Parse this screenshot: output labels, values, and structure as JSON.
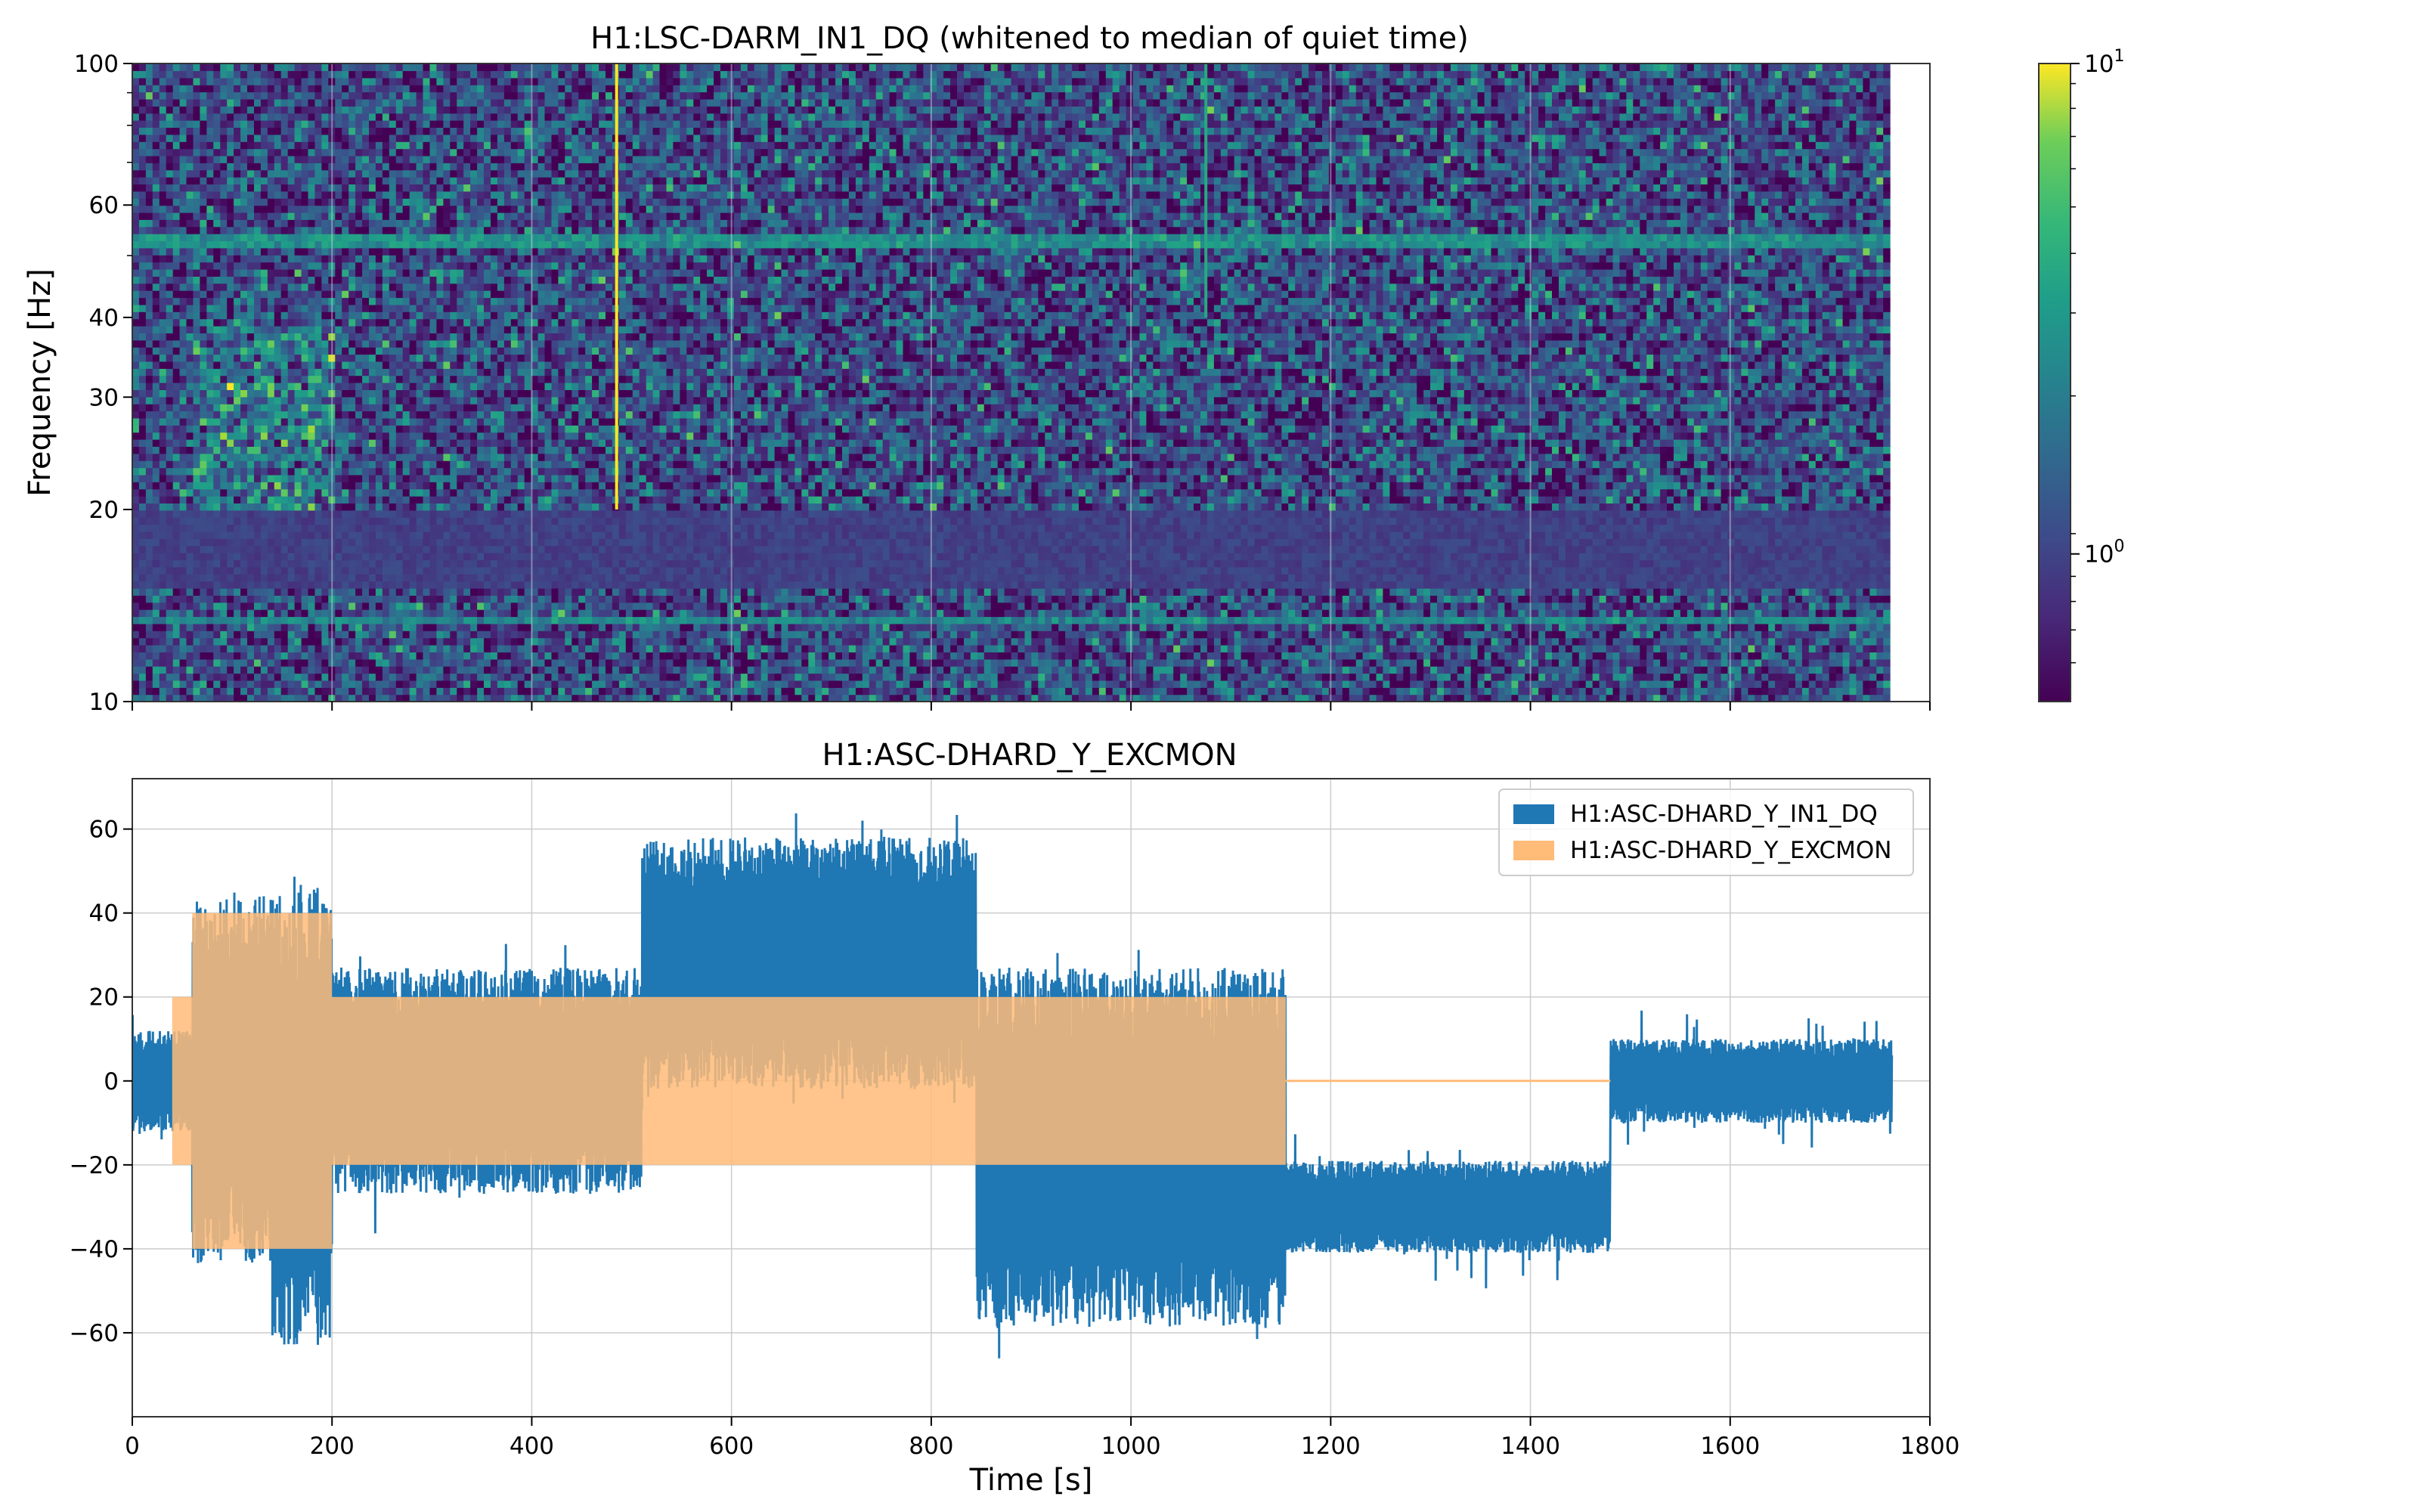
{
  "chart_data": [
    {
      "type": "heatmap",
      "title": "H1:LSC-DARM_IN1_DQ (whitened to median of quiet time)",
      "xlabel": "",
      "ylabel": "Frequency [Hz]",
      "xlim": [
        0,
        1800
      ],
      "ylim": [
        10,
        100
      ],
      "y_scale": "log",
      "data_extent_x": [
        0,
        1760
      ],
      "y_ticks": [
        10,
        20,
        30,
        40,
        60,
        100
      ],
      "y_tick_labels": [
        "10",
        "20",
        "30",
        "40",
        "60",
        "100"
      ],
      "x_ticks": [
        0,
        200,
        400,
        600,
        800,
        1000,
        1200,
        1400,
        1600,
        1800
      ],
      "grid": true,
      "colormap": "viridis",
      "colorbar": {
        "scale": "log",
        "range": [
          0.5,
          10
        ],
        "tick_labels": [
          {
            "base": "10",
            "exp": "1",
            "value": 10
          },
          {
            "base": "10",
            "exp": "0",
            "value": 1
          }
        ]
      },
      "features": [
        {
          "kind": "broadband_transient",
          "t": 485,
          "f_range": [
            20,
            100
          ],
          "intensity": 10
        },
        {
          "kind": "broadband_transient",
          "t": 1075,
          "f_range": [
            40,
            100
          ],
          "intensity": 3
        },
        {
          "kind": "persistent_line",
          "f": 53,
          "intensity": 2.5
        },
        {
          "kind": "persistent_line",
          "f": 13.5,
          "intensity": 2.2
        },
        {
          "kind": "excess_region",
          "t_range": [
            60,
            200
          ],
          "f_range": [
            20,
            40
          ],
          "intensity": 2.5
        },
        {
          "kind": "quiet_band",
          "f_range": [
            15,
            20
          ],
          "intensity": 0.9
        }
      ]
    },
    {
      "type": "line",
      "title": "H1:ASC-DHARD_Y_EXCMON",
      "xlabel": "Time [s]",
      "ylabel": "",
      "xlim": [
        0,
        1800
      ],
      "ylim": [
        -80,
        72
      ],
      "x_ticks": [
        0,
        200,
        400,
        600,
        800,
        1000,
        1200,
        1400,
        1600,
        1800
      ],
      "y_ticks": [
        -60,
        -40,
        -20,
        0,
        20,
        40,
        60
      ],
      "y_tick_labels": [
        "−60",
        "−40",
        "−20",
        "0",
        "20",
        "40",
        "60"
      ],
      "grid": true,
      "legend_position": "top-right",
      "series": [
        {
          "name": "H1:ASC-DHARD_Y_IN1_DQ",
          "color": "#1f77b4",
          "segments": [
            {
              "t": [
                0,
                60
              ],
              "center": 0,
              "halfwidth": 12,
              "spike": 8
            },
            {
              "t": [
                60,
                140
              ],
              "center": 0,
              "halfwidth": 44,
              "spike": 12
            },
            {
              "t": [
                140,
                200
              ],
              "center": -8,
              "halfwidth": 55,
              "spike": 12
            },
            {
              "t": [
                200,
                510
              ],
              "center": 0,
              "halfwidth": 27,
              "spike": 14
            },
            {
              "t": [
                510,
                845
              ],
              "center": 28,
              "halfwidth": 30,
              "spike": 8
            },
            {
              "t": [
                845,
                1155
              ],
              "center": -16,
              "halfwidth": 43,
              "spike": 10
            },
            {
              "t": [
                1155,
                1480
              ],
              "center": -30,
              "halfwidth": 11,
              "spike": 10
            },
            {
              "t": [
                1480,
                1762
              ],
              "center": 0,
              "halfwidth": 10,
              "spike": 10
            }
          ]
        },
        {
          "name": "H1:ASC-DHARD_Y_EXCMON",
          "color": "#ffbb78",
          "segments": [
            {
              "t": [
                0,
                40
              ],
              "amplitude": 0
            },
            {
              "t": [
                40,
                60
              ],
              "amplitude": 20
            },
            {
              "t": [
                60,
                200
              ],
              "amplitude": 40
            },
            {
              "t": [
                200,
                1155
              ],
              "amplitude": 20
            },
            {
              "t": [
                1155,
                1480
              ],
              "amplitude": 0
            }
          ]
        }
      ]
    }
  ]
}
